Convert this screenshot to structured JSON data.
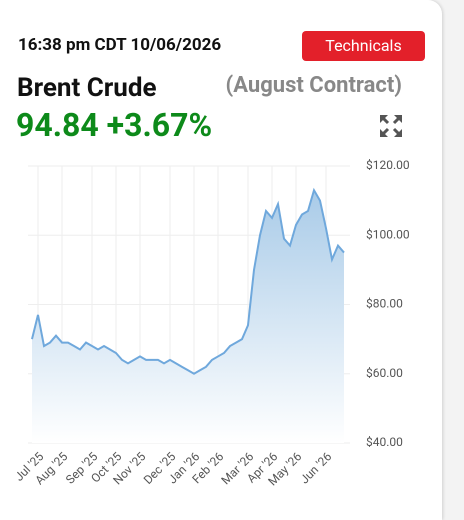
{
  "header": {
    "timestamp": "16:38 pm CDT 10/06/2026",
    "button": "Technicals",
    "name": "Brent Crude",
    "contract": "(August Contract)",
    "price": "94.84",
    "change": "+3.67%"
  },
  "chart_data": {
    "type": "area",
    "color": "#6fa8dc",
    "categories": [
      null,
      "Jul '25",
      null,
      null,
      null,
      "Aug '25",
      null,
      null,
      null,
      null,
      "Sep '25",
      null,
      null,
      null,
      "Oct '25",
      null,
      null,
      null,
      "Nov '25",
      null,
      null,
      null,
      null,
      "Dec '25",
      null,
      null,
      null,
      "Jan '26",
      null,
      null,
      null,
      "Feb '26",
      null,
      null,
      null,
      null,
      "Mar '26",
      null,
      null,
      null,
      "Apr '26",
      null,
      null,
      null,
      "May '26",
      null,
      null,
      null,
      null,
      "Jun '26",
      null,
      null,
      null
    ],
    "values": [
      70,
      77,
      68,
      69,
      71,
      69,
      69,
      68,
      67,
      69,
      68,
      67,
      68,
      67,
      66,
      64,
      63,
      64,
      65,
      64,
      64,
      64,
      63,
      64,
      63,
      62,
      61,
      60,
      61,
      62,
      64,
      65,
      66,
      68,
      69,
      70,
      74,
      90,
      100,
      107,
      105,
      109,
      99,
      97,
      103,
      106,
      107,
      113,
      110,
      102,
      93,
      97,
      95
    ],
    "ylim": [
      40,
      120
    ],
    "yticks": [
      {
        "value": 40,
        "label": "$40.00"
      },
      {
        "value": 60,
        "label": "$60.00"
      },
      {
        "value": 80,
        "label": "$80.00"
      },
      {
        "value": 100,
        "label": "$100.00"
      },
      {
        "value": 120,
        "label": "$120.00"
      }
    ],
    "grid": true
  }
}
